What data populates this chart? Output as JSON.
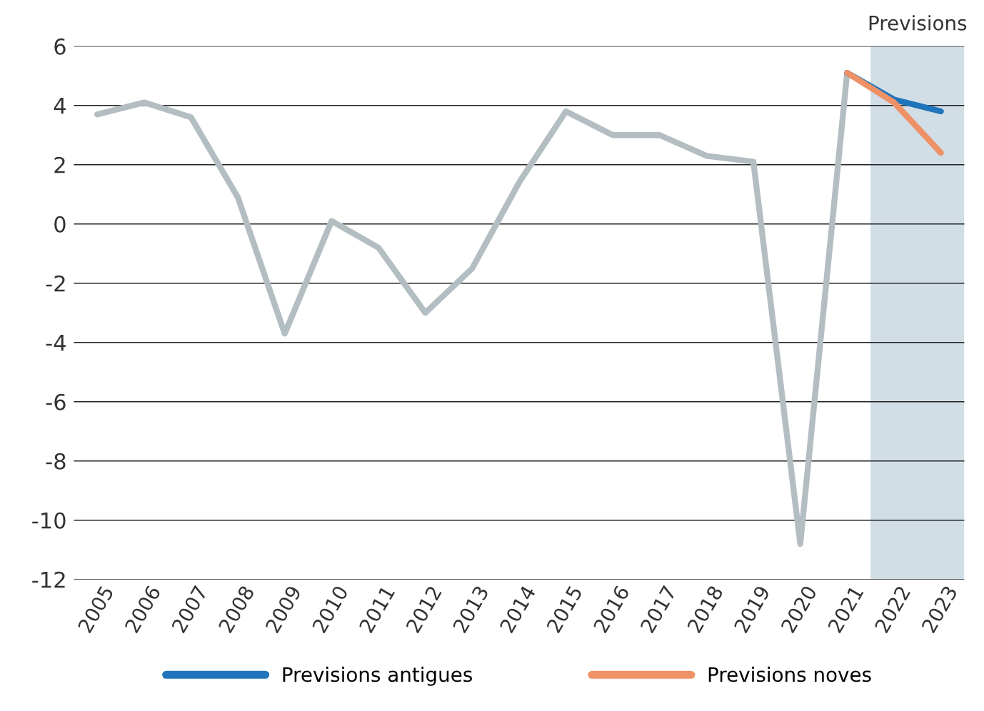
{
  "chart_data": {
    "type": "line",
    "series": [
      {
        "color": "#b3bec2",
        "x": [
          2005,
          2006,
          2007,
          2008,
          2009,
          2010,
          2011,
          2012,
          2013,
          2014,
          2015,
          2016,
          2017,
          2018,
          2019,
          2020,
          2021
        ],
        "values": [
          3.7,
          4.1,
          3.6,
          0.9,
          -3.7,
          0.1,
          -0.8,
          -3.0,
          -1.5,
          1.4,
          3.8,
          3.0,
          3.0,
          2.3,
          2.1,
          -10.8,
          5.1
        ]
      },
      {
        "name": "Previsions antigues",
        "color": "#1f74bb",
        "x": [
          2021,
          2022,
          2023
        ],
        "values": [
          5.1,
          4.2,
          3.8
        ]
      },
      {
        "name": "Previsions noves",
        "color": "#ef9166",
        "x": [
          2021,
          2022,
          2023
        ],
        "values": [
          5.1,
          4.1,
          2.4
        ]
      }
    ],
    "xlim": [
      2004.5,
      2023.5
    ],
    "xticks": [
      2005,
      2006,
      2007,
      2008,
      2009,
      2010,
      2011,
      2012,
      2013,
      2014,
      2015,
      2016,
      2017,
      2018,
      2019,
      2020,
      2021,
      2022,
      2023
    ],
    "ylim": [
      -12,
      6
    ],
    "yticks": [
      {
        "value": -12,
        "label": "-12"
      },
      {
        "value": -10,
        "label": "-10"
      },
      {
        "value": -8,
        "label": "-8"
      },
      {
        "value": -6,
        "label": "-6"
      },
      {
        "value": -4,
        "label": "-4"
      },
      {
        "value": -2,
        "label": "-2"
      },
      0,
      2,
      4,
      6
    ],
    "bands": [
      {
        "axis": "x",
        "from": 2021.5,
        "to": 2023.5,
        "label": "Previsions",
        "color": "#d1dee6"
      }
    ],
    "grid": "y",
    "legend": "bottom",
    "line_style": "solid",
    "marker": "none"
  }
}
